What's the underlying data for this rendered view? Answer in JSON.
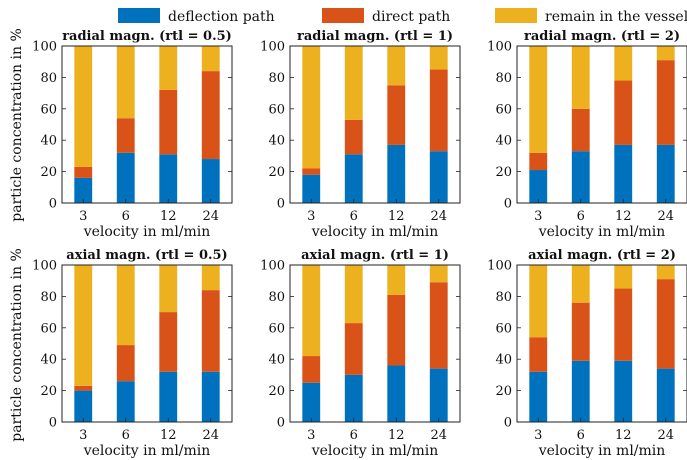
{
  "legend": {
    "placement": "top",
    "items": [
      {
        "label": "deflection path",
        "color": "#0072BD"
      },
      {
        "label": "direct path",
        "color": "#D95319"
      },
      {
        "label": "remain in the vessel",
        "color": "#EDB120"
      }
    ]
  },
  "ylabel": "particle concentration in %",
  "chart_data": [
    {
      "type": "bar",
      "stacked": true,
      "title": "radial magn. (rtl = 0.5)",
      "xlabel": "velocity in ml/min",
      "categories": [
        "3",
        "6",
        "12",
        "24"
      ],
      "ylim": [
        0,
        100
      ],
      "yticks": [
        0,
        20,
        40,
        60,
        80,
        100
      ],
      "series": [
        {
          "name": "deflection path",
          "values": [
            16,
            32,
            31,
            28
          ]
        },
        {
          "name": "direct path",
          "values": [
            7,
            22,
            41,
            56
          ]
        },
        {
          "name": "remain in the vessel",
          "values": [
            77,
            46,
            28,
            16
          ]
        }
      ]
    },
    {
      "type": "bar",
      "stacked": true,
      "title": "radial magn. (rtl = 1)",
      "xlabel": "velocity in ml/min",
      "categories": [
        "3",
        "6",
        "12",
        "24"
      ],
      "ylim": [
        0,
        100
      ],
      "yticks": [
        0,
        20,
        40,
        60,
        80,
        100
      ],
      "series": [
        {
          "name": "deflection path",
          "values": [
            18,
            31,
            37,
            33
          ]
        },
        {
          "name": "direct path",
          "values": [
            4,
            22,
            38,
            52
          ]
        },
        {
          "name": "remain in the vessel",
          "values": [
            78,
            47,
            25,
            15
          ]
        }
      ]
    },
    {
      "type": "bar",
      "stacked": true,
      "title": "radial magn. (rtl = 2)",
      "xlabel": "velocity in ml/min",
      "categories": [
        "3",
        "6",
        "12",
        "24"
      ],
      "ylim": [
        0,
        100
      ],
      "yticks": [
        0,
        20,
        40,
        60,
        80,
        100
      ],
      "series": [
        {
          "name": "deflection path",
          "values": [
            21,
            33,
            37,
            37
          ]
        },
        {
          "name": "direct path",
          "values": [
            11,
            27,
            41,
            54
          ]
        },
        {
          "name": "remain in the vessel",
          "values": [
            68,
            40,
            22,
            9
          ]
        }
      ]
    },
    {
      "type": "bar",
      "stacked": true,
      "title": "axial magn. (rtl = 0.5)",
      "xlabel": "velocity in ml/min",
      "categories": [
        "3",
        "6",
        "12",
        "24"
      ],
      "ylim": [
        0,
        100
      ],
      "yticks": [
        0,
        20,
        40,
        60,
        80,
        100
      ],
      "series": [
        {
          "name": "deflection path",
          "values": [
            20,
            26,
            32,
            32
          ]
        },
        {
          "name": "direct path",
          "values": [
            3,
            23,
            38,
            52
          ]
        },
        {
          "name": "remain in the vessel",
          "values": [
            77,
            51,
            30,
            16
          ]
        }
      ]
    },
    {
      "type": "bar",
      "stacked": true,
      "title": "axial magn. (rtl = 1)",
      "xlabel": "velocity in ml/min",
      "categories": [
        "3",
        "6",
        "12",
        "24"
      ],
      "ylim": [
        0,
        100
      ],
      "yticks": [
        0,
        20,
        40,
        60,
        80,
        100
      ],
      "series": [
        {
          "name": "deflection path",
          "values": [
            25,
            30,
            36,
            34
          ]
        },
        {
          "name": "direct path",
          "values": [
            17,
            33,
            45,
            55
          ]
        },
        {
          "name": "remain in the vessel",
          "values": [
            58,
            37,
            19,
            11
          ]
        }
      ]
    },
    {
      "type": "bar",
      "stacked": true,
      "title": "axial magn. (rtl = 2)",
      "xlabel": "velocity in ml/min",
      "categories": [
        "3",
        "6",
        "12",
        "24"
      ],
      "ylim": [
        0,
        100
      ],
      "yticks": [
        0,
        20,
        40,
        60,
        80,
        100
      ],
      "series": [
        {
          "name": "deflection path",
          "values": [
            32,
            39,
            39,
            34
          ]
        },
        {
          "name": "direct path",
          "values": [
            22,
            37,
            46,
            57
          ]
        },
        {
          "name": "remain in the vessel",
          "values": [
            46,
            24,
            15,
            9
          ]
        }
      ]
    }
  ]
}
